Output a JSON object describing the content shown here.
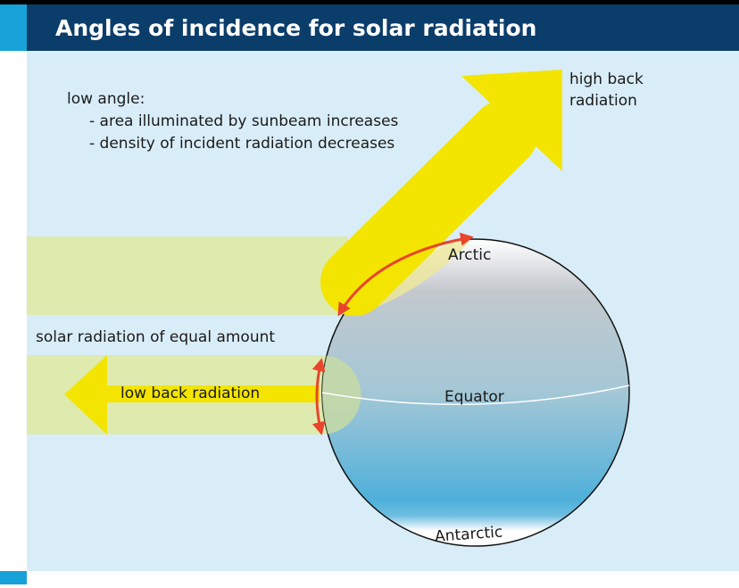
{
  "header": {
    "title": "Angles of incidence for solar radiation"
  },
  "notes": {
    "heading": "low angle:",
    "lines": [
      "- area illuminated by sunbeam increases",
      "- density of incident radiation decreases"
    ]
  },
  "labels": {
    "high_back_radiation": [
      "high back",
      "radiation"
    ],
    "arctic": "Arctic",
    "equator": "Equator",
    "antarctic": "Antarctic",
    "equal_amount": "solar radiation of equal amount",
    "low_back_radiation": "low back radiation"
  }
}
